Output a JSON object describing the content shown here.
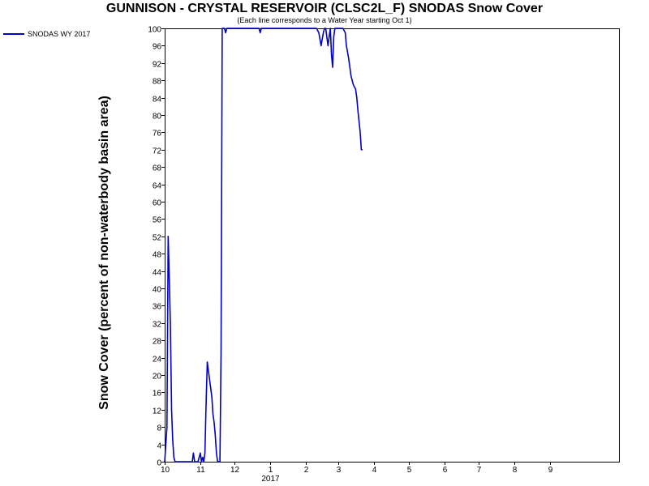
{
  "chart_data": {
    "type": "line",
    "title": "GUNNISON - CRYSTAL RESERVOIR (CLSC2L_F) SNODAS Snow Cover",
    "subtitle": "(Each line corresponds to a Water Year starting Oct 1)",
    "xlabel": "",
    "ylabel": "Snow Cover (percent of non-waterbody basin area)",
    "x_axis": {
      "type": "date",
      "range": [
        "2016-10-01",
        "2017-10-31"
      ],
      "tick_labels": [
        "10",
        "11",
        "12",
        "1",
        "2",
        "3",
        "4",
        "5",
        "6",
        "7",
        "8",
        "9"
      ],
      "year_label": "2017"
    },
    "ylim": [
      0,
      100
    ],
    "y_ticks": [
      0,
      4,
      8,
      12,
      16,
      20,
      24,
      28,
      32,
      36,
      40,
      44,
      48,
      52,
      56,
      60,
      64,
      68,
      72,
      76,
      80,
      84,
      88,
      92,
      96,
      100
    ],
    "grid": false,
    "legend": {
      "position": "top-left",
      "entries": [
        "SNODAS WY 2017"
      ]
    },
    "colors": {
      "series": "#0000cc",
      "axes": "#000000",
      "background": "#ffffff"
    },
    "series": [
      {
        "name": "SNODAS WY 2017",
        "x": [
          "2016-10-01",
          "2016-10-03",
          "2016-10-04",
          "2016-10-05",
          "2016-10-06",
          "2016-10-07",
          "2016-10-08",
          "2016-10-09",
          "2016-10-10",
          "2016-10-12",
          "2016-10-15",
          "2016-10-20",
          "2016-10-25",
          "2016-10-26",
          "2016-10-27",
          "2016-10-29",
          "2016-10-30",
          "2016-11-01",
          "2016-11-02",
          "2016-11-03",
          "2016-11-04",
          "2016-11-05",
          "2016-11-06",
          "2016-11-07",
          "2016-11-08",
          "2016-11-09",
          "2016-11-10",
          "2016-11-11",
          "2016-11-12",
          "2016-11-13",
          "2016-11-14",
          "2016-11-15",
          "2016-11-16",
          "2016-11-17",
          "2016-11-18",
          "2016-11-19",
          "2016-11-20",
          "2016-11-21",
          "2016-11-22",
          "2016-11-23",
          "2016-11-24",
          "2016-11-27",
          "2016-11-28",
          "2016-11-30",
          "2016-12-05",
          "2016-12-10",
          "2016-12-15",
          "2016-12-20",
          "2016-12-22",
          "2016-12-23",
          "2016-12-24",
          "2016-12-25",
          "2016-12-31",
          "2017-01-10",
          "2017-01-20",
          "2017-01-30",
          "2017-02-05",
          "2017-02-10",
          "2017-02-12",
          "2017-02-14",
          "2017-02-16",
          "2017-02-17",
          "2017-02-18",
          "2017-02-20",
          "2017-02-21",
          "2017-02-22",
          "2017-02-23",
          "2017-02-24",
          "2017-02-25",
          "2017-02-26",
          "2017-02-27",
          "2017-02-28",
          "2017-03-02",
          "2017-03-05",
          "2017-03-07",
          "2017-03-08",
          "2017-03-10",
          "2017-03-12",
          "2017-03-14",
          "2017-03-16",
          "2017-03-17",
          "2017-03-18",
          "2017-03-20",
          "2017-03-21",
          "2017-03-22"
        ],
        "values": [
          0,
          8,
          52,
          42,
          31,
          12,
          5,
          1,
          0,
          0,
          0,
          0,
          0,
          2,
          0,
          0,
          0,
          2,
          0,
          1,
          0,
          2,
          13,
          23,
          21,
          19,
          17,
          15,
          11,
          9,
          6,
          2,
          0,
          0,
          0,
          25,
          100,
          100,
          100,
          99,
          100,
          100,
          100,
          100,
          100,
          100,
          100,
          100,
          100,
          99,
          100,
          100,
          100,
          100,
          100,
          100,
          100,
          100,
          99,
          96,
          99,
          100,
          100,
          96,
          98,
          100,
          94,
          91,
          98,
          100,
          100,
          100,
          100,
          100,
          99,
          96,
          93,
          89,
          87,
          86,
          84,
          81,
          76,
          72,
          72
        ]
      }
    ]
  }
}
